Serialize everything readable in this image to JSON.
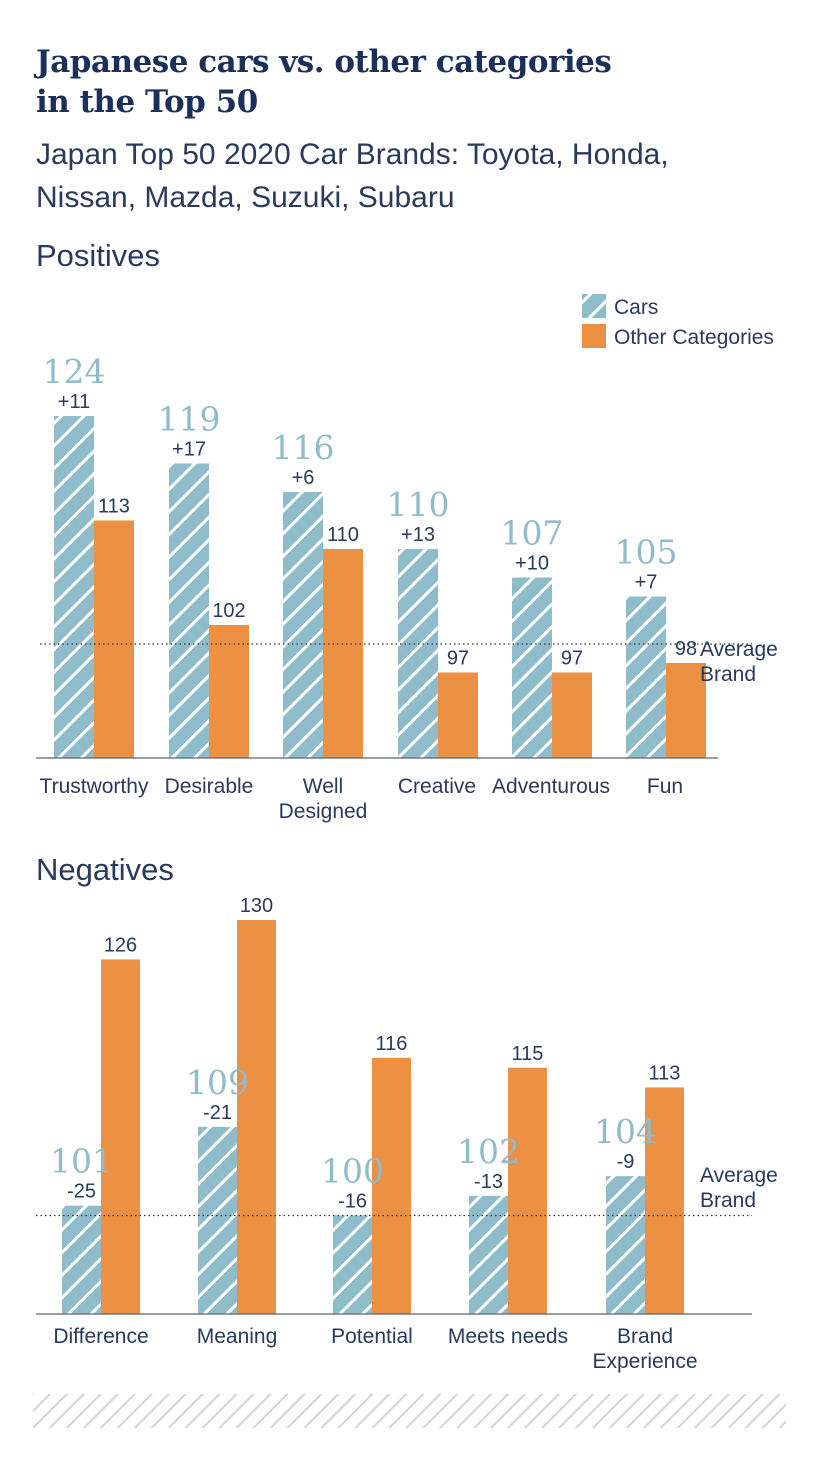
{
  "colors": {
    "cars": "#8fbccb",
    "cars_hatch": "#ffffff",
    "other": "#ec9144",
    "text": "#2a3a5c",
    "title": "#1b2f5b",
    "axis": "#5a6470"
  },
  "header": {
    "title_line1": "Japanese cars vs. other categories",
    "title_line2": "in the Top 50",
    "subtitle_line1": "Japan Top 50 2020 Car Brands: Toyota, Honda,",
    "subtitle_line2": "Nissan, Mazda, Suzuki, Subaru"
  },
  "legend": {
    "cars": "Cars",
    "other": "Other Categories"
  },
  "chart_data": [
    {
      "type": "bar",
      "title": "Positives",
      "series_names": [
        "Cars",
        "Other Categories"
      ],
      "categories": [
        [
          "Trustworthy"
        ],
        [
          "Desirable"
        ],
        [
          "Well",
          "Designed"
        ],
        [
          "Creative"
        ],
        [
          "Adventurous"
        ],
        [
          "Fun"
        ]
      ],
      "cars": [
        124,
        119,
        116,
        110,
        107,
        105
      ],
      "other": [
        113,
        102,
        110,
        97,
        97,
        98
      ],
      "diff": [
        "+11",
        "+17",
        "+6",
        "+13",
        "+10",
        "+7"
      ],
      "average_label": [
        "Average",
        "Brand"
      ],
      "average_value": 100,
      "ylim": [
        88,
        130
      ]
    },
    {
      "type": "bar",
      "title": "Negatives",
      "series_names": [
        "Cars",
        "Other Categories"
      ],
      "categories": [
        [
          "Difference"
        ],
        [
          "Meaning"
        ],
        [
          "Potential"
        ],
        [
          "Meets needs"
        ],
        [
          "Brand",
          "Experience"
        ]
      ],
      "cars": [
        101,
        109,
        100,
        102,
        104
      ],
      "other": [
        126,
        130,
        116,
        115,
        113
      ],
      "diff": [
        "-25",
        "-21",
        "-16",
        "-13",
        "-9"
      ],
      "average_label": [
        "Average",
        "Brand"
      ],
      "average_value": 100,
      "ylim": [
        90,
        130
      ]
    }
  ]
}
